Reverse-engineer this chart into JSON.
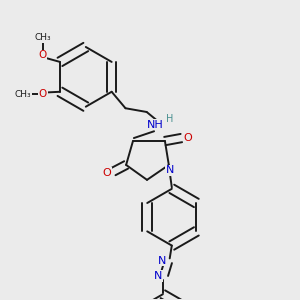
{
  "bg_color": "#ebebeb",
  "bond_color": "#1a1a1a",
  "N_color": "#0000cc",
  "O_color": "#cc0000",
  "H_color": "#4a9090",
  "line_width": 1.4,
  "fig_size": [
    3.0,
    3.0
  ],
  "dpi": 100,
  "methoxy_labels": [
    "O",
    "O"
  ],
  "methyl_labels": [
    "CH₃",
    "CH₃"
  ]
}
